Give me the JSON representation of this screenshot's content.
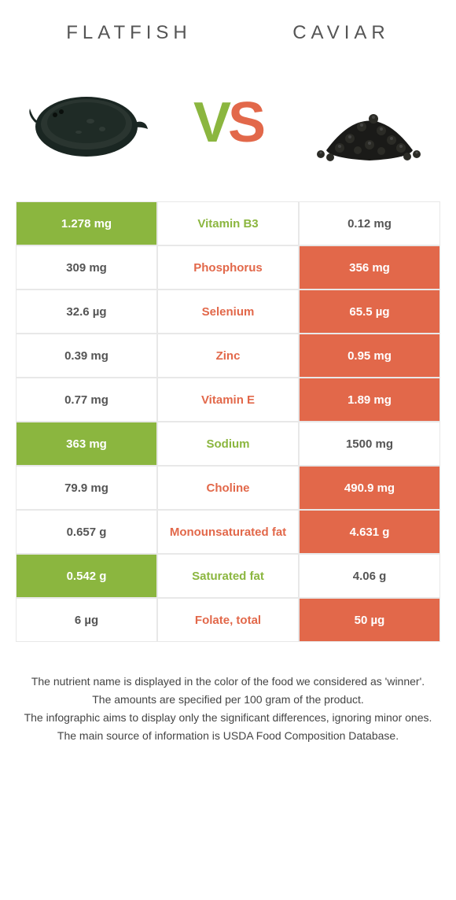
{
  "header": {
    "left": "FLATFISH",
    "right": "CAVIAR"
  },
  "vs": {
    "v": "V",
    "s": "S"
  },
  "colors": {
    "left": "#8bb63f",
    "right": "#e2684a",
    "border": "#e8e8e8",
    "text": "#555"
  },
  "rows": [
    {
      "name": "Vitamin B3",
      "left": "1.278 mg",
      "right": "0.12 mg",
      "winner": "left"
    },
    {
      "name": "Phosphorus",
      "left": "309 mg",
      "right": "356 mg",
      "winner": "right"
    },
    {
      "name": "Selenium",
      "left": "32.6 µg",
      "right": "65.5 µg",
      "winner": "right"
    },
    {
      "name": "Zinc",
      "left": "0.39 mg",
      "right": "0.95 mg",
      "winner": "right"
    },
    {
      "name": "Vitamin E",
      "left": "0.77 mg",
      "right": "1.89 mg",
      "winner": "right"
    },
    {
      "name": "Sodium",
      "left": "363 mg",
      "right": "1500 mg",
      "winner": "left"
    },
    {
      "name": "Choline",
      "left": "79.9 mg",
      "right": "490.9 mg",
      "winner": "right"
    },
    {
      "name": "Monounsaturated fat",
      "left": "0.657 g",
      "right": "4.631 g",
      "winner": "right"
    },
    {
      "name": "Saturated fat",
      "left": "0.542 g",
      "right": "4.06 g",
      "winner": "left"
    },
    {
      "name": "Folate, total",
      "left": "6 µg",
      "right": "50 µg",
      "winner": "right"
    }
  ],
  "footer": [
    "The nutrient name is displayed in the color of the food we considered as 'winner'.",
    "The amounts are specified per 100 gram of the product.",
    "The infographic aims to display only the significant differences, ignoring minor ones.",
    "The main source of information is USDA Food Composition Database."
  ]
}
